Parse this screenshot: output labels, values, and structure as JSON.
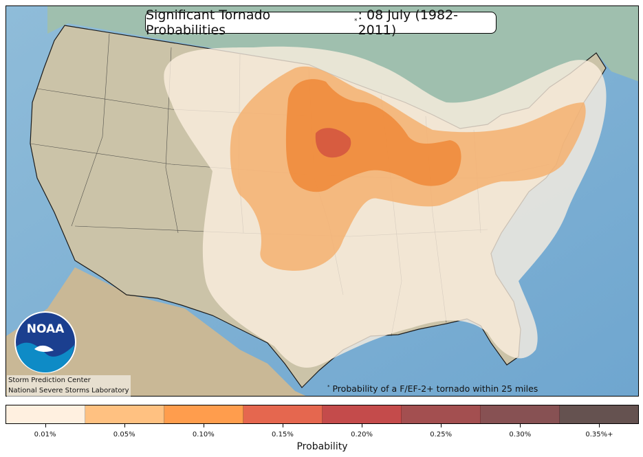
{
  "map": {
    "title_prefix": "Significant Tornado Probabilities",
    "title_marker": "*",
    "title_suffix": ": 08 July (1982-2011)",
    "credit_line1": "Storm Prediction Center",
    "credit_line2": "National Severe Storms Laboratory",
    "footnote_marker": "*",
    "footnote_text": "Probability of a F/EF-2+ tornado within 25 miles",
    "logo_text": "NOAA",
    "colors": {
      "ocean": "#7fb2d6",
      "land": "#c8c2aa",
      "canada": "#a8c4b4",
      "prob_0_01": "#fdf0e0",
      "prob_0_05": "#f6b574",
      "prob_0_10": "#ef8a3e",
      "prob_0_15": "#d85a3f"
    }
  },
  "colorbar": {
    "title": "Probability",
    "bins": [
      {
        "label": "0.01%",
        "color": "#fff0e0"
      },
      {
        "label": "0.05%",
        "color": "#ffc181"
      },
      {
        "label": "0.10%",
        "color": "#ff9d4d"
      },
      {
        "label": "0.15%",
        "color": "#e5674f"
      },
      {
        "label": "0.20%",
        "color": "#c44b4b"
      },
      {
        "label": "0.25%",
        "color": "#a34f50"
      },
      {
        "label": "0.30%",
        "color": "#875153"
      },
      {
        "label": "0.35%+",
        "color": "#655250"
      }
    ]
  }
}
